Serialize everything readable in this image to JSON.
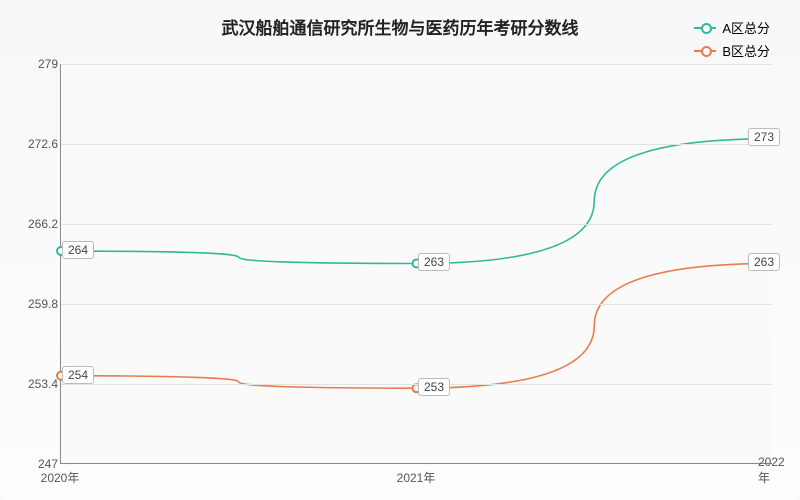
{
  "chart": {
    "type": "line",
    "title": "武汉船舶通信研究所生物与医药历年考研分数线",
    "title_fontsize": 17,
    "title_color": "#222222",
    "background_gradient": [
      "#f7f8f9",
      "#fdfdfd"
    ],
    "plot_bg": "#fafafa",
    "grid_color": "#e3e3e3",
    "axis_color": "#888888",
    "tick_color": "#555555",
    "tick_fontsize": 12,
    "y_axis": {
      "min": 247,
      "max": 279,
      "ticks": [
        247,
        253.4,
        259.8,
        266.2,
        272.6,
        279
      ]
    },
    "x_axis": {
      "labels": [
        "2020年",
        "2021年",
        "2022年"
      ],
      "positions": [
        0,
        50,
        100
      ]
    },
    "legend": {
      "position": "top-right",
      "items": [
        {
          "label": "A区总分",
          "color": "#2fb89a"
        },
        {
          "label": "B区总分",
          "color": "#e87c4a"
        }
      ]
    },
    "series": [
      {
        "name": "A区总分",
        "color": "#2fb89a",
        "line_width": 1.6,
        "values": [
          264,
          263,
          273
        ],
        "labels": [
          "264",
          "263",
          "273"
        ]
      },
      {
        "name": "B区总分",
        "color": "#e87c4a",
        "line_width": 1.6,
        "values": [
          254,
          253,
          263
        ],
        "labels": [
          "254",
          "253",
          "263"
        ]
      }
    ],
    "label_box": {
      "bg": "#ffffff",
      "border": "#bbbbbb",
      "fontsize": 12,
      "color": "#444444"
    }
  }
}
